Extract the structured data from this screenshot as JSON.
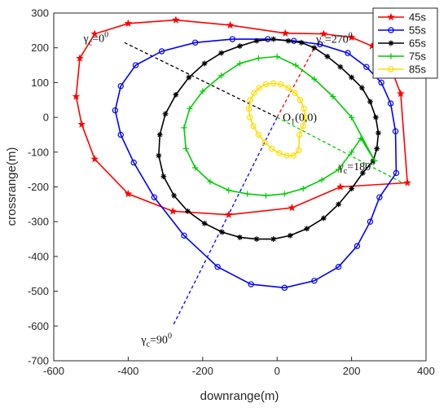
{
  "chart_data": {
    "type": "line",
    "xlabel": "downrange(m)",
    "ylabel": "crossrange(m)",
    "xlim": [
      -600,
      400
    ],
    "ylim": [
      -700,
      300
    ],
    "xticks": [
      -600,
      -400,
      -200,
      0,
      200,
      400
    ],
    "yticks": [
      -700,
      -600,
      -500,
      -400,
      -300,
      -200,
      -100,
      0,
      100,
      200,
      300
    ],
    "grid": false,
    "legend_position": "top-right",
    "series": [
      {
        "name": "45s",
        "color": "#ff0000",
        "marker": "star",
        "x": [
          350,
          332,
          300,
          255,
          200,
          125,
          22,
          -126,
          -272,
          -400,
          -490,
          -530,
          -540,
          -525,
          -490,
          -400,
          -280,
          -130,
          40,
          170
        ],
        "y": [
          -188,
          68,
          158,
          205,
          230,
          240,
          242,
          265,
          280,
          270,
          240,
          170,
          60,
          -20,
          -120,
          -220,
          -270,
          -280,
          -260,
          -200
        ]
      },
      {
        "name": "55s",
        "color": "#0000ff",
        "marker": "circle",
        "x": [
          320,
          318,
          305,
          280,
          240,
          190,
          115,
          45,
          -25,
          -120,
          -220,
          -310,
          -380,
          -420,
          -435,
          -420,
          -385,
          -330,
          -250,
          -160,
          -70,
          20,
          100,
          165,
          215,
          250,
          275
        ],
        "y": [
          -160,
          -40,
          40,
          100,
          145,
          185,
          210,
          220,
          225,
          225,
          215,
          190,
          150,
          90,
          20,
          -50,
          -130,
          -230,
          -340,
          -430,
          -480,
          -490,
          -470,
          -430,
          -370,
          -300,
          -230
        ]
      },
      {
        "name": "65s",
        "color": "#000000",
        "marker": "asterisk",
        "x": [
          258,
          268,
          272,
          265,
          250,
          228,
          200,
          170,
          135,
          100,
          65,
          30,
          -10,
          -55,
          -100,
          -150,
          -195,
          -237,
          -272,
          -300,
          -315,
          -318,
          -305,
          -277,
          -240,
          -195,
          -148,
          -100,
          -55,
          -10,
          35,
          80,
          125,
          165,
          200,
          230
        ],
        "y": [
          -125,
          -90,
          -45,
          0,
          45,
          85,
          115,
          145,
          175,
          200,
          215,
          220,
          225,
          220,
          205,
          185,
          155,
          115,
          65,
          10,
          -50,
          -110,
          -170,
          -225,
          -270,
          -305,
          -330,
          -345,
          -350,
          -350,
          -340,
          -320,
          -290,
          -250,
          -205,
          -160
        ]
      },
      {
        "name": "75s",
        "color": "#00cc00",
        "marker": "plus",
        "x": [
          262,
          200,
          150,
          100,
          50,
          0,
          -50,
          -100,
          -150,
          -200,
          -235,
          -250,
          -245,
          -220,
          -180,
          -130,
          -80,
          -30,
          20,
          70,
          120,
          165,
          200,
          225
        ],
        "y": [
          -125,
          0,
          60,
          110,
          150,
          175,
          170,
          155,
          120,
          75,
          25,
          -30,
          -90,
          -145,
          -185,
          -210,
          -220,
          -225,
          -220,
          -205,
          -180,
          -150,
          -100,
          -60
        ]
      },
      {
        "name": "85s",
        "color": "#ffdd00",
        "marker": "circle",
        "x": [
          60,
          70,
          75,
          72,
          62,
          48,
          30,
          10,
          -10,
          -30,
          -48,
          -62,
          -72,
          -76,
          -73,
          -64,
          -50,
          -33,
          -14,
          6,
          26,
          44,
          58
        ],
        "y": [
          -50,
          -25,
          0,
          25,
          50,
          70,
          85,
          95,
          98,
          95,
          85,
          70,
          50,
          25,
          0,
          -25,
          -50,
          -72,
          -90,
          -103,
          -110,
          -110,
          -95
        ]
      }
    ],
    "guide_lines": [
      {
        "name": "gamma-c-0",
        "color": "#000000",
        "x": [
          -410,
          0
        ],
        "y": [
          215,
          0
        ]
      },
      {
        "name": "gamma-c-270",
        "color": "#ff0000",
        "x": [
          0,
          100
        ],
        "y": [
          0,
          200
        ]
      },
      {
        "name": "gamma-c-180",
        "color": "#00cc00",
        "x": [
          0,
          340
        ],
        "y": [
          0,
          -190
        ]
      },
      {
        "name": "gamma-c-90",
        "color": "#0000ff",
        "x": [
          0,
          -280
        ],
        "y": [
          0,
          -600
        ]
      }
    ],
    "annotations": [
      {
        "name": "gamma-0",
        "base": "γ",
        "sub": "c",
        "text": "=0",
        "sup": "0",
        "x": -520,
        "y": 217
      },
      {
        "name": "gamma-270",
        "base": "γ",
        "sub": "c",
        "text": "=270",
        "sup": "0",
        "x": 105,
        "y": 215
      },
      {
        "name": "gamma-180",
        "base": "γ",
        "sub": "c",
        "text": "=180",
        "sup": "0",
        "x": 165,
        "y": -152
      },
      {
        "name": "gamma-90",
        "base": "γ",
        "sub": "c",
        "text": "=90",
        "sup": "0",
        "x": -365,
        "y": -650
      },
      {
        "name": "origin",
        "base": "O",
        "sub": "1",
        "text": "(0,0)",
        "sup": "",
        "x": 15,
        "y": -10
      }
    ]
  }
}
